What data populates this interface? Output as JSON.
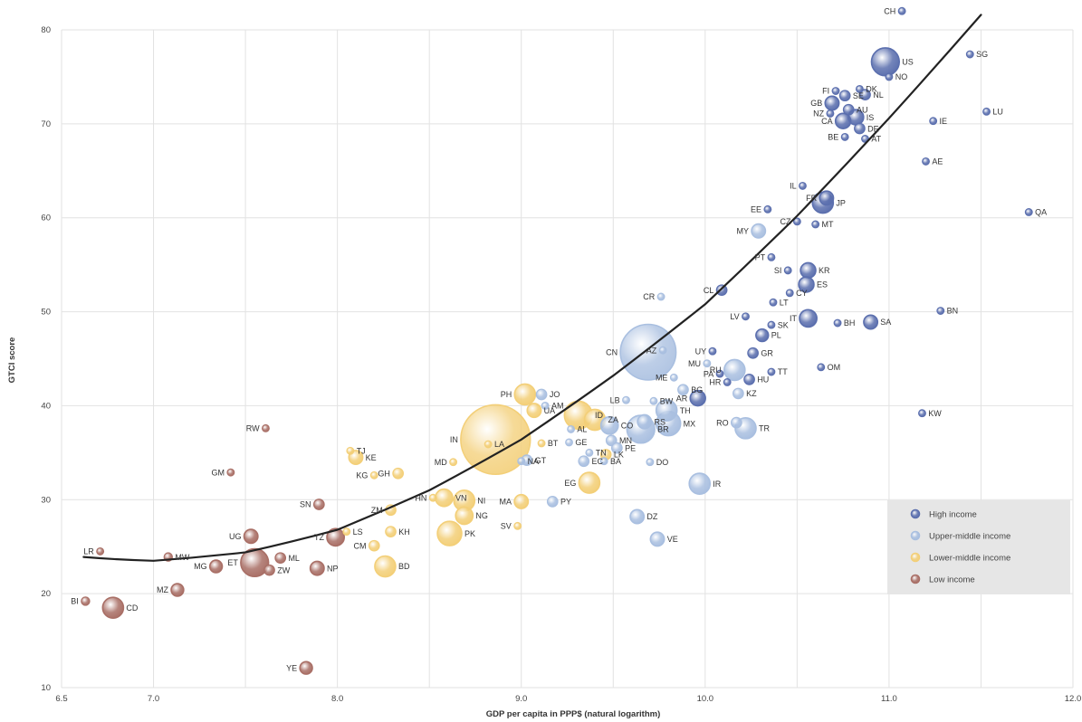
{
  "chart_data": {
    "type": "scatter",
    "title": "",
    "xlabel": "GDP per capita in PPP$ (natural logarithm)",
    "ylabel": "GTCI score",
    "xlim": [
      6.5,
      12.0
    ],
    "ylim": [
      10,
      80
    ],
    "x_ticks": [
      6.5,
      7.0,
      7.5,
      8.0,
      8.5,
      9.0,
      9.5,
      10.0,
      10.5,
      11.0,
      11.5,
      12.0
    ],
    "x_tick_labels": [
      "6.5",
      "7.0",
      "",
      "8.0",
      "",
      "9.0",
      "",
      "10.0",
      "",
      "11.0",
      "",
      "12.0"
    ],
    "y_ticks": [
      10,
      20,
      30,
      40,
      50,
      60,
      70,
      80
    ],
    "grid": true,
    "legend": {
      "position": "bottom-right",
      "entries": [
        {
          "key": "high",
          "label": "High income",
          "color": "#5b6fae"
        },
        {
          "key": "upper",
          "label": "Upper-middle income",
          "color": "#a9bfe0"
        },
        {
          "key": "lower",
          "label": "Lower-middle income",
          "color": "#f3cf78"
        },
        {
          "key": "low",
          "label": "Low income",
          "color": "#a96f66"
        }
      ]
    },
    "trendline": {
      "type": "quadratic",
      "points": [
        [
          6.62,
          23.9
        ],
        [
          7.0,
          23.5
        ],
        [
          7.5,
          24.4
        ],
        [
          8.0,
          26.8
        ],
        [
          8.5,
          31.0
        ],
        [
          9.0,
          36.4
        ],
        [
          9.5,
          43.2
        ],
        [
          10.0,
          50.8
        ],
        [
          10.5,
          60.2
        ],
        [
          11.0,
          70.6
        ],
        [
          11.5,
          81.6
        ]
      ]
    },
    "series": [
      {
        "name": "High income",
        "key": "high",
        "points": [
          {
            "label": "CH",
            "x": 11.07,
            "y": 82.0,
            "size": 1
          },
          {
            "label": "US",
            "x": 10.98,
            "y": 76.6,
            "size": 4
          },
          {
            "label": "SG",
            "x": 11.44,
            "y": 77.4,
            "size": 1
          },
          {
            "label": "DK",
            "x": 10.84,
            "y": 73.7,
            "size": 1
          },
          {
            "label": "NO",
            "x": 11.0,
            "y": 75.0,
            "size": 1
          },
          {
            "label": "FI",
            "x": 10.71,
            "y": 73.5,
            "size": 1
          },
          {
            "label": "SE",
            "x": 10.76,
            "y": 73.0,
            "size": 1.5
          },
          {
            "label": "NL",
            "x": 10.87,
            "y": 73.1,
            "size": 1.5
          },
          {
            "label": "GB",
            "x": 10.69,
            "y": 72.2,
            "size": 2
          },
          {
            "label": "AU",
            "x": 10.78,
            "y": 71.5,
            "size": 1.5
          },
          {
            "label": "NZ",
            "x": 10.68,
            "y": 71.1,
            "size": 1
          },
          {
            "label": "IS",
            "x": 10.82,
            "y": 70.7,
            "size": 2.2
          },
          {
            "label": "IE",
            "x": 11.24,
            "y": 70.3,
            "size": 1
          },
          {
            "label": "LU",
            "x": 11.53,
            "y": 71.3,
            "size": 1
          },
          {
            "label": "CA",
            "x": 10.75,
            "y": 70.3,
            "size": 2.2
          },
          {
            "label": "DE",
            "x": 10.84,
            "y": 69.5,
            "size": 1.5
          },
          {
            "label": "BE",
            "x": 10.76,
            "y": 68.6,
            "size": 1
          },
          {
            "label": "AT",
            "x": 10.87,
            "y": 68.4,
            "size": 1
          },
          {
            "label": "AE",
            "x": 11.2,
            "y": 66.0,
            "size": 1
          },
          {
            "label": "QA",
            "x": 11.76,
            "y": 60.6,
            "size": 1
          },
          {
            "label": "IL",
            "x": 10.53,
            "y": 63.4,
            "size": 1
          },
          {
            "label": "FR",
            "x": 10.66,
            "y": 62.1,
            "size": 2
          },
          {
            "label": "JP",
            "x": 10.64,
            "y": 61.6,
            "size": 3
          },
          {
            "label": "EE",
            "x": 10.34,
            "y": 60.9,
            "size": 1
          },
          {
            "label": "CZ",
            "x": 10.5,
            "y": 59.6,
            "size": 1
          },
          {
            "label": "MT",
            "x": 10.6,
            "y": 59.3,
            "size": 1
          },
          {
            "label": "PT",
            "x": 10.36,
            "y": 55.8,
            "size": 1
          },
          {
            "label": "SI",
            "x": 10.45,
            "y": 54.4,
            "size": 1
          },
          {
            "label": "KR",
            "x": 10.56,
            "y": 54.4,
            "size": 2.2
          },
          {
            "label": "ES",
            "x": 10.55,
            "y": 52.9,
            "size": 2.2
          },
          {
            "label": "CY",
            "x": 10.46,
            "y": 52.0,
            "size": 1
          },
          {
            "label": "CL",
            "x": 10.09,
            "y": 52.3,
            "size": 1.5
          },
          {
            "label": "LT",
            "x": 10.37,
            "y": 51.0,
            "size": 1
          },
          {
            "label": "BN",
            "x": 11.28,
            "y": 50.1,
            "size": 1
          },
          {
            "label": "LV",
            "x": 10.22,
            "y": 49.5,
            "size": 1
          },
          {
            "label": "IT",
            "x": 10.56,
            "y": 49.3,
            "size": 2.5
          },
          {
            "label": "BH",
            "x": 10.72,
            "y": 48.8,
            "size": 1
          },
          {
            "label": "SA",
            "x": 10.9,
            "y": 48.9,
            "size": 2
          },
          {
            "label": "SK",
            "x": 10.36,
            "y": 48.6,
            "size": 1
          },
          {
            "label": "PL",
            "x": 10.31,
            "y": 47.5,
            "size": 1.8
          },
          {
            "label": "UY",
            "x": 10.04,
            "y": 45.8,
            "size": 1
          },
          {
            "label": "GR",
            "x": 10.26,
            "y": 45.6,
            "size": 1.5
          },
          {
            "label": "OM",
            "x": 10.63,
            "y": 44.1,
            "size": 1
          },
          {
            "label": "TT",
            "x": 10.36,
            "y": 43.6,
            "size": 1
          },
          {
            "label": "PA",
            "x": 10.08,
            "y": 43.4,
            "size": 1
          },
          {
            "label": "HU",
            "x": 10.24,
            "y": 42.8,
            "size": 1.5
          },
          {
            "label": "HR",
            "x": 10.12,
            "y": 42.5,
            "size": 1
          },
          {
            "label": "AR",
            "x": 9.96,
            "y": 40.8,
            "size": 2.2
          },
          {
            "label": "KW",
            "x": 11.18,
            "y": 39.2,
            "size": 1
          }
        ]
      },
      {
        "name": "Upper-middle income",
        "key": "upper",
        "points": [
          {
            "label": "MY",
            "x": 10.29,
            "y": 58.6,
            "size": 2
          },
          {
            "label": "CR",
            "x": 9.76,
            "y": 51.6,
            "size": 1
          },
          {
            "label": "CN",
            "x": 9.69,
            "y": 45.7,
            "size": 8
          },
          {
            "label": "AZ",
            "x": 9.77,
            "y": 45.9,
            "size": 1
          },
          {
            "label": "MU",
            "x": 10.01,
            "y": 44.5,
            "size": 1
          },
          {
            "label": "RU",
            "x": 10.16,
            "y": 43.8,
            "size": 3
          },
          {
            "label": "ME",
            "x": 9.83,
            "y": 43.0,
            "size": 1
          },
          {
            "label": "BG",
            "x": 9.88,
            "y": 41.7,
            "size": 1.5
          },
          {
            "label": "KZ",
            "x": 10.18,
            "y": 41.3,
            "size": 1.5
          },
          {
            "label": "BW",
            "x": 9.72,
            "y": 40.5,
            "size": 1
          },
          {
            "label": "LB",
            "x": 9.57,
            "y": 40.6,
            "size": 1
          },
          {
            "label": "TH",
            "x": 9.79,
            "y": 39.5,
            "size": 3
          },
          {
            "label": "RS",
            "x": 9.67,
            "y": 38.3,
            "size": 2
          },
          {
            "label": "MX",
            "x": 9.8,
            "y": 38.1,
            "size": 3.5
          },
          {
            "label": "RO",
            "x": 10.17,
            "y": 38.2,
            "size": 1.5
          },
          {
            "label": "TR",
            "x": 10.22,
            "y": 37.6,
            "size": 3
          },
          {
            "label": "BR",
            "x": 9.65,
            "y": 37.5,
            "size": 4
          },
          {
            "label": "CO",
            "x": 9.48,
            "y": 37.9,
            "size": 2.5
          },
          {
            "label": "AM",
            "x": 9.13,
            "y": 40.0,
            "size": 1
          },
          {
            "label": "MN",
            "x": 9.49,
            "y": 36.3,
            "size": 1.5
          },
          {
            "label": "PE",
            "x": 9.52,
            "y": 35.5,
            "size": 1.5
          },
          {
            "label": "AL",
            "x": 9.27,
            "y": 37.5,
            "size": 1
          },
          {
            "label": "BA",
            "x": 9.45,
            "y": 34.1,
            "size": 1
          },
          {
            "label": "DO",
            "x": 9.7,
            "y": 34.0,
            "size": 1
          },
          {
            "label": "EC",
            "x": 9.34,
            "y": 34.1,
            "size": 1.5
          },
          {
            "label": "GE",
            "x": 9.26,
            "y": 36.1,
            "size": 1
          },
          {
            "label": "TN",
            "x": 9.37,
            "y": 35.0,
            "size": 1
          },
          {
            "label": "GT",
            "x": 9.03,
            "y": 34.2,
            "size": 1.5
          },
          {
            "label": "NA",
            "x": 9.0,
            "y": 34.1,
            "size": 1
          },
          {
            "label": "JO",
            "x": 9.11,
            "y": 41.2,
            "size": 1.5
          },
          {
            "label": "PY",
            "x": 9.17,
            "y": 29.8,
            "size": 1.5
          },
          {
            "label": "IR",
            "x": 9.97,
            "y": 31.7,
            "size": 3
          },
          {
            "label": "DZ",
            "x": 9.63,
            "y": 28.2,
            "size": 2
          },
          {
            "label": "VE",
            "x": 9.74,
            "y": 25.8,
            "size": 2
          }
        ]
      },
      {
        "name": "Lower-middle income",
        "key": "lower",
        "points": [
          {
            "label": "PH",
            "x": 9.02,
            "y": 41.2,
            "size": 3
          },
          {
            "label": "IN",
            "x": 8.86,
            "y": 36.4,
            "size": 10
          },
          {
            "label": "LA",
            "x": 8.82,
            "y": 35.9,
            "size": 1
          },
          {
            "label": "UA",
            "x": 9.07,
            "y": 39.5,
            "size": 2
          },
          {
            "label": "ID",
            "x": 9.31,
            "y": 39.0,
            "size": 4
          },
          {
            "label": "ZA",
            "x": 9.4,
            "y": 38.5,
            "size": 3
          },
          {
            "label": "LK",
            "x": 9.46,
            "y": 34.8,
            "size": 1.5
          },
          {
            "label": "BT",
            "x": 9.11,
            "y": 36.0,
            "size": 1
          },
          {
            "label": "MD",
            "x": 8.63,
            "y": 34.0,
            "size": 1
          },
          {
            "label": "EG",
            "x": 9.37,
            "y": 31.8,
            "size": 3
          },
          {
            "label": "MA",
            "x": 9.0,
            "y": 29.8,
            "size": 2
          },
          {
            "label": "KE",
            "x": 8.1,
            "y": 34.5,
            "size": 2
          },
          {
            "label": "TJ",
            "x": 8.07,
            "y": 35.2,
            "size": 1
          },
          {
            "label": "KG",
            "x": 8.2,
            "y": 32.6,
            "size": 1
          },
          {
            "label": "GH",
            "x": 8.33,
            "y": 32.8,
            "size": 1.5
          },
          {
            "label": "VN",
            "x": 8.58,
            "y": 30.2,
            "size": 2.5
          },
          {
            "label": "HN",
            "x": 8.52,
            "y": 30.2,
            "size": 1
          },
          {
            "label": "NI",
            "x": 8.69,
            "y": 29.9,
            "size": 3
          },
          {
            "label": "NG",
            "x": 8.69,
            "y": 28.3,
            "size": 2.5
          },
          {
            "label": "ZM",
            "x": 8.29,
            "y": 28.9,
            "size": 1.5
          },
          {
            "label": "KH",
            "x": 8.29,
            "y": 26.6,
            "size": 1.5
          },
          {
            "label": "SV",
            "x": 8.98,
            "y": 27.2,
            "size": 1
          },
          {
            "label": "PK",
            "x": 8.61,
            "y": 26.4,
            "size": 3.5
          },
          {
            "label": "CM",
            "x": 8.2,
            "y": 25.1,
            "size": 1.5
          },
          {
            "label": "LS",
            "x": 8.05,
            "y": 26.6,
            "size": 1
          },
          {
            "label": "BD",
            "x": 8.26,
            "y": 22.9,
            "size": 3
          }
        ]
      },
      {
        "name": "Low income",
        "key": "low",
        "points": [
          {
            "label": "RW",
            "x": 7.61,
            "y": 37.6,
            "size": 1
          },
          {
            "label": "GM",
            "x": 7.42,
            "y": 32.9,
            "size": 1
          },
          {
            "label": "SN",
            "x": 7.9,
            "y": 29.5,
            "size": 1.5
          },
          {
            "label": "TZ",
            "x": 7.99,
            "y": 26.0,
            "size": 2.5
          },
          {
            "label": "UG",
            "x": 7.53,
            "y": 26.1,
            "size": 2
          },
          {
            "label": "MW",
            "x": 7.08,
            "y": 23.9,
            "size": 1.2
          },
          {
            "label": "ML",
            "x": 7.69,
            "y": 23.8,
            "size": 1.5
          },
          {
            "label": "MG",
            "x": 7.34,
            "y": 22.9,
            "size": 1.8
          },
          {
            "label": "ET",
            "x": 7.55,
            "y": 23.3,
            "size": 4
          },
          {
            "label": "ZW",
            "x": 7.63,
            "y": 22.5,
            "size": 1.5
          },
          {
            "label": "NP",
            "x": 7.89,
            "y": 22.7,
            "size": 2
          },
          {
            "label": "LR",
            "x": 6.71,
            "y": 24.5,
            "size": 1
          },
          {
            "label": "MZ",
            "x": 7.13,
            "y": 20.4,
            "size": 1.8
          },
          {
            "label": "BI",
            "x": 6.63,
            "y": 19.2,
            "size": 1.2
          },
          {
            "label": "CD",
            "x": 6.78,
            "y": 18.5,
            "size": 3
          },
          {
            "label": "YE",
            "x": 7.83,
            "y": 12.1,
            "size": 1.8
          }
        ]
      }
    ]
  }
}
